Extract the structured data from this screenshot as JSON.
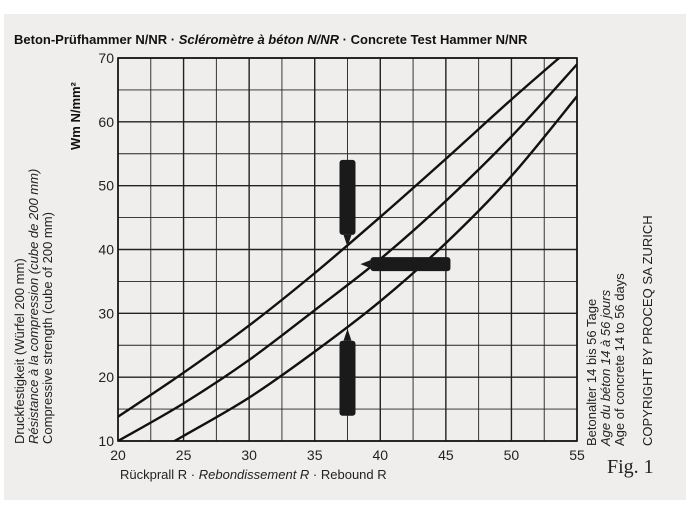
{
  "title": {
    "part1": "Beton-Prüfhammer N/NR · ",
    "part2": "Scléromètre à béton N/NR",
    "part3": " · Concrete Test Hammer N/NR"
  },
  "figure_label": "Fig. 1",
  "y_axis_unit": "Wm N/mm²",
  "y_axis_label": {
    "de": "Druckfestigkeit (Würfel 200 mm)",
    "fr": "Résistance à la compression (cube de 200 mm)",
    "en": "Compressive strength (cube of 200 mm)"
  },
  "x_axis_label": {
    "de": "Rückprall R · ",
    "fr": "Rebondissement R",
    "en": " · Rebound R"
  },
  "right_note": {
    "de": "Betonalter 14 bis 56 Tage",
    "fr": "Age du béton 14 à 56 jours",
    "en": "Age of concrete 14 to 56 days",
    "copyright": "COPYRIGHT BY PROCEQ SA ZURICH"
  },
  "chart_data": {
    "type": "line",
    "xlim": [
      20,
      55
    ],
    "ylim": [
      10,
      70
    ],
    "x_ticks": [
      20,
      25,
      30,
      35,
      40,
      45,
      50,
      55
    ],
    "y_ticks": [
      10,
      20,
      30,
      40,
      50,
      60,
      70
    ],
    "grid": true,
    "series": [
      {
        "orientation": "hammer pointing downward",
        "x": [
          20,
          25,
          30,
          35,
          40,
          45,
          50,
          54.2
        ],
        "y": [
          13.8,
          20.7,
          28.1,
          36.3,
          45.1,
          54.2,
          63.5,
          71
        ]
      },
      {
        "orientation": "hammer horizontal",
        "x": [
          20,
          25,
          30,
          35,
          40,
          45,
          50,
          55
        ],
        "y": [
          10,
          15.9,
          22.7,
          30.5,
          38.5,
          47.6,
          57.7,
          69
        ]
      },
      {
        "orientation": "hammer pointing upward",
        "x": [
          23,
          25,
          30,
          35,
          40,
          45,
          50,
          55
        ],
        "y": [
          8.5,
          10.8,
          16.8,
          24,
          31.9,
          41,
          51.5,
          64
        ]
      }
    ],
    "hammer_icons": [
      {
        "orientation": "down",
        "x": 37.5,
        "y": 47
      },
      {
        "orientation": "horizontal",
        "x": 42.3,
        "y": 37.7
      },
      {
        "orientation": "up",
        "x": 37.5,
        "y": 21
      }
    ]
  }
}
